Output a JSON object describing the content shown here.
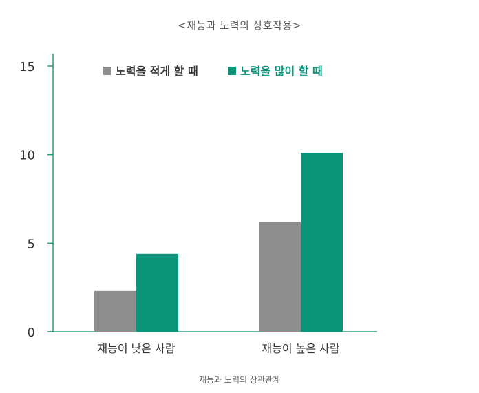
{
  "colors": {
    "axis": "#2a9d7c",
    "low_effort": "#8e8e8e",
    "high_effort": "#0a9479",
    "legend_high_text": "#0a9479",
    "text": "#333333"
  },
  "chart_data": {
    "type": "bar",
    "title": "<재능과 노력의 상호작용>",
    "caption": "재능과 노력의 상관관계",
    "xlabel": "",
    "ylabel": "",
    "categories": [
      "재능이 낮은 사람",
      "재능이 높은 사람"
    ],
    "series": [
      {
        "name": "노력을 적게 할 때",
        "values": [
          2.3,
          6.2
        ],
        "color": "#8e8e8e"
      },
      {
        "name": "노력을 많이 할 때",
        "values": [
          4.4,
          10.1
        ],
        "color": "#0a9479"
      }
    ],
    "ylim": [
      0,
      15
    ],
    "yticks": [
      0,
      5,
      10,
      15
    ],
    "legend_position": "top",
    "grid": false
  }
}
